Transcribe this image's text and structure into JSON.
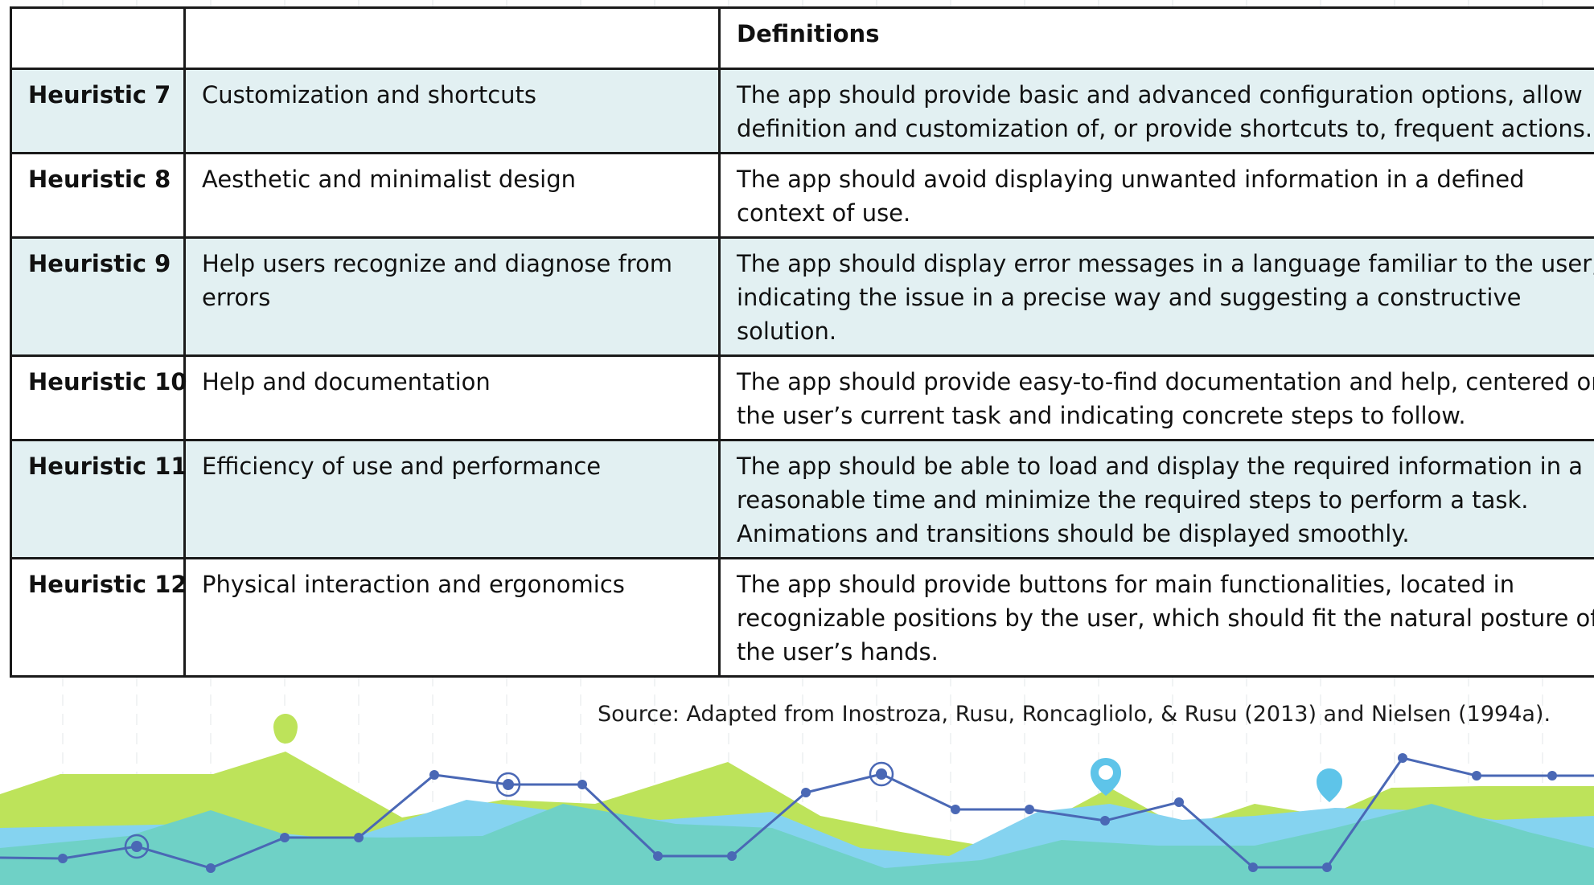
{
  "table": {
    "header": {
      "col1": "",
      "col2": "",
      "col3": "Definitions"
    },
    "rows": [
      {
        "id": "Heuristic 7",
        "name": "Customization and shortcuts",
        "definition": "The app should provide basic and advanced configuration options, allow definition and customization of, or provide shortcuts to, frequent actions."
      },
      {
        "id": "Heuristic 8",
        "name": "Aesthetic and minimalist design",
        "definition": "The app should avoid displaying unwanted information in a defined context of use."
      },
      {
        "id": "Heuristic 9",
        "name": "Help users recognize and diagnose from errors",
        "definition": "The app should display error messages in a language familiar to the user, indicating the issue in a precise way and suggesting a constructive solution."
      },
      {
        "id": "Heuristic 10",
        "name": "Help and documentation",
        "definition": "The app should provide easy-to-find documentation and help, centered on the user’s current task and indicating concrete steps to follow."
      },
      {
        "id": "Heuristic 11",
        "name": "Efficiency of use and performance",
        "definition": "The app should be able to load and display the required information in a reasonable time and minimize the required steps to perform a task. Animations and transitions should be displayed smoothly."
      },
      {
        "id": "Heuristic 12",
        "name": "Physical interaction and ergonomics",
        "definition": "The app should provide buttons for main functionalities, located in recognizable positions by the user, which should fit the natural posture of the user’s hands."
      }
    ]
  },
  "source_note": "Source: Adapted from Inostroza, Rusu, Roncagliolo, & Rusu (2013) and Nielsen (1994a).",
  "colors": {
    "green": "#bde35a",
    "teal": "#6fd1c6",
    "light_blue": "#85d3f0",
    "line_blue": "#4a68b5",
    "row_shade": "#e2f0f2"
  },
  "decoration": {
    "pin_icons": [
      "map-pin-green-icon",
      "map-pin-outline-blue-icon",
      "map-pin-blue-icon"
    ]
  }
}
